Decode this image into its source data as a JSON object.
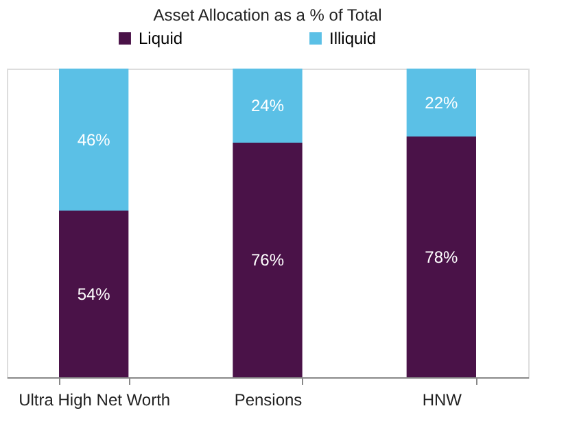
{
  "chart_data": {
    "type": "bar",
    "title": "Asset Allocation as a % of Total",
    "categories": [
      "Ultra High Net Worth",
      "Pensions",
      "HNW"
    ],
    "series": [
      {
        "name": "Liquid",
        "color": "#4a1248",
        "values": [
          54,
          76,
          78
        ],
        "value_labels": [
          "54%",
          "76%",
          "78%"
        ]
      },
      {
        "name": "Illiquid",
        "color": "#5bc0e6",
        "values": [
          46,
          24,
          22
        ],
        "value_labels": [
          "46%",
          "24%",
          "22%"
        ]
      }
    ],
    "stacked": true,
    "legend": "top",
    "grid": false,
    "tick_labels": "x"
  }
}
